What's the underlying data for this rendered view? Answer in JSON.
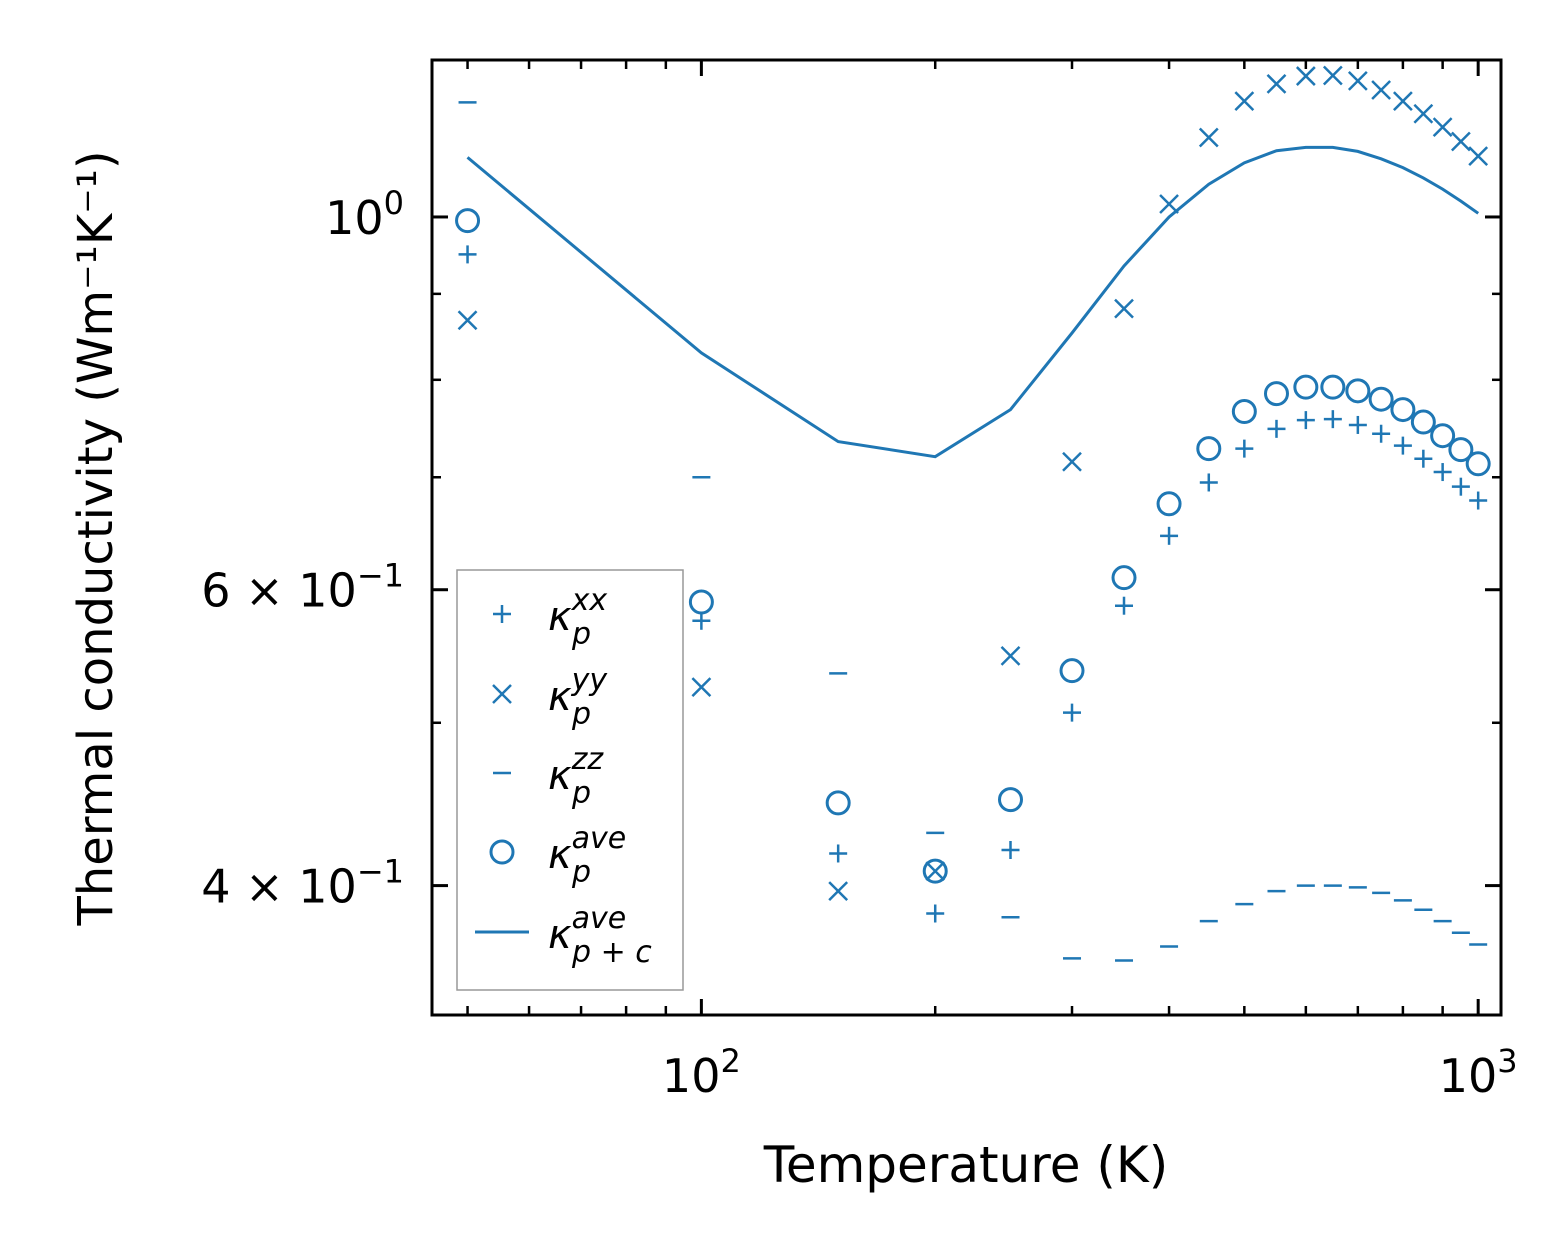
{
  "chart_data": {
    "type": "scatter",
    "title": "",
    "xlabel": "Temperature (K)",
    "ylabel": "Thermal conductivity (Wm⁻¹K⁻¹)",
    "xscale": "log",
    "yscale": "log",
    "xlim": [
      45,
      1070
    ],
    "ylim": [
      0.335,
      1.24
    ],
    "x_ticks": [
      {
        "value": 100,
        "base": "10",
        "exp": "2"
      },
      {
        "value": 1000,
        "base": "10",
        "exp": "3"
      }
    ],
    "y_ticks": [
      {
        "value": 1.0,
        "mant": "",
        "base": "10",
        "exp": "0"
      },
      {
        "value": 0.6,
        "mant": "6",
        "base": "10",
        "exp": "−1"
      },
      {
        "value": 0.4,
        "mant": "4",
        "base": "10",
        "exp": "−1"
      }
    ],
    "legend_position": "lower-left",
    "color": "#1f77b4",
    "series": [
      {
        "name": "kappa_p^xx",
        "label_main": "κ",
        "label_sub": "p",
        "label_sup": "xx",
        "marker": "plus",
        "x": [
          50,
          100,
          150,
          200,
          250,
          300,
          350,
          400,
          450,
          500,
          550,
          600,
          650,
          700,
          750,
          800,
          850,
          900,
          950,
          1000
        ],
        "y": [
          0.95,
          0.575,
          0.418,
          0.385,
          0.42,
          0.507,
          0.587,
          0.646,
          0.695,
          0.728,
          0.748,
          0.757,
          0.758,
          0.752,
          0.743,
          0.731,
          0.718,
          0.705,
          0.691,
          0.678
        ]
      },
      {
        "name": "kappa_p^yy",
        "label_main": "κ",
        "label_sub": "p",
        "label_sup": "yy",
        "marker": "x",
        "x": [
          50,
          100,
          150,
          200,
          250,
          300,
          350,
          400,
          450,
          500,
          550,
          600,
          650,
          700,
          750,
          800,
          850,
          900,
          950,
          1000
        ],
        "y": [
          0.868,
          0.525,
          0.397,
          0.408,
          0.548,
          0.715,
          0.882,
          1.018,
          1.115,
          1.172,
          1.2,
          1.213,
          1.214,
          1.205,
          1.19,
          1.172,
          1.152,
          1.131,
          1.109,
          1.087
        ]
      },
      {
        "name": "kappa_p^zz",
        "label_main": "κ",
        "label_sub": "p",
        "label_sup": "zz",
        "marker": "hline",
        "x": [
          50,
          100,
          150,
          200,
          250,
          300,
          350,
          400,
          450,
          500,
          550,
          600,
          650,
          700,
          750,
          800,
          850,
          900,
          950,
          1000
        ],
        "y": [
          1.17,
          0.7,
          0.535,
          0.43,
          0.383,
          0.362,
          0.361,
          0.368,
          0.381,
          0.39,
          0.397,
          0.4,
          0.4,
          0.399,
          0.396,
          0.392,
          0.387,
          0.381,
          0.375,
          0.369
        ]
      },
      {
        "name": "kappa_p^ave",
        "label_main": "κ",
        "label_sub": "p",
        "label_sup": "ave",
        "marker": "circle",
        "x": [
          50,
          100,
          150,
          200,
          250,
          300,
          350,
          400,
          450,
          500,
          550,
          600,
          650,
          700,
          750,
          800,
          850,
          900,
          950,
          1000
        ],
        "y": [
          0.995,
          0.59,
          0.448,
          0.408,
          0.45,
          0.537,
          0.61,
          0.675,
          0.728,
          0.766,
          0.785,
          0.792,
          0.792,
          0.788,
          0.779,
          0.768,
          0.755,
          0.741,
          0.727,
          0.713
        ]
      },
      {
        "name": "kappa_p+c^ave",
        "label_main": "κ",
        "label_sub": "p + c",
        "label_sup": "ave",
        "marker": "line",
        "x": [
          50,
          100,
          150,
          200,
          250,
          300,
          350,
          400,
          450,
          500,
          550,
          600,
          650,
          700,
          750,
          800,
          850,
          900,
          950,
          1000
        ],
        "y": [
          1.085,
          0.83,
          0.735,
          0.72,
          0.768,
          0.853,
          0.935,
          1.0,
          1.046,
          1.077,
          1.095,
          1.1,
          1.1,
          1.094,
          1.083,
          1.07,
          1.055,
          1.039,
          1.022,
          1.005
        ]
      }
    ]
  }
}
